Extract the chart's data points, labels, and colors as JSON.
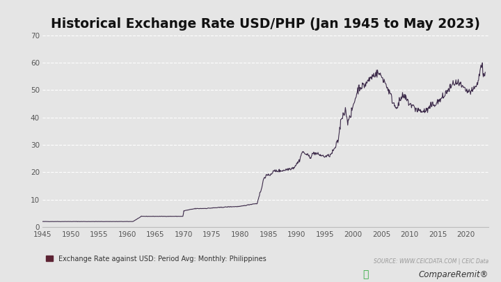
{
  "title": "Historical Exchange Rate USD/PHP (Jan 1945 to May 2023)",
  "title_fontsize": 13.5,
  "xlim": [
    1945,
    2024
  ],
  "ylim": [
    0,
    70
  ],
  "yticks": [
    0,
    10,
    20,
    30,
    40,
    50,
    60,
    70
  ],
  "xticks": [
    1945,
    1950,
    1955,
    1960,
    1965,
    1970,
    1975,
    1980,
    1985,
    1990,
    1995,
    2000,
    2005,
    2010,
    2015,
    2020
  ],
  "line_color": "#3d2b4a",
  "line_width": 0.8,
  "background_color": "#e5e5e5",
  "grid_color": "#ffffff",
  "grid_linewidth": 0.8,
  "legend_label": "Exchange Rate against USD: Period Avg: Monthly: Philippines",
  "legend_marker_color": "#5c2333",
  "source_text": "SOURCE: WWW.CEICDATA.COM | CEIC Data",
  "source_color": "#999999",
  "source_fontsize": 5.5,
  "tick_fontsize": 7.5,
  "tick_color": "#555555",
  "spine_color": "#bbbbbb"
}
